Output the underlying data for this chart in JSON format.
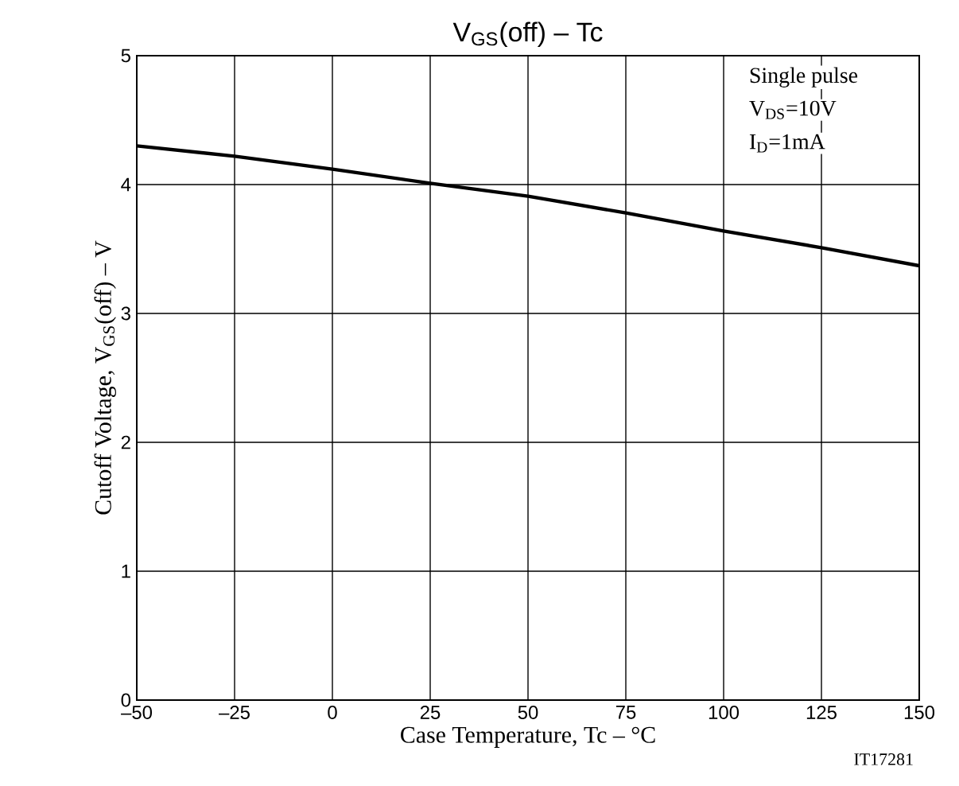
{
  "chart_data": {
    "type": "line",
    "title": "V$_{GS}$(off)  –  Tc",
    "xlabel": "Case Temperature, Tc  –  °C",
    "ylabel": "Cutoff Voltage, V$_{GS}$(off)  –  V",
    "x": [
      -50,
      -25,
      0,
      25,
      50,
      75,
      100,
      125,
      150
    ],
    "series": [
      {
        "color": "#000000",
        "values": [
          4.3,
          4.22,
          4.12,
          4.01,
          3.91,
          3.78,
          3.64,
          3.51,
          3.37
        ]
      }
    ],
    "xlim": [
      -50,
      150
    ],
    "ylim": [
      0,
      5
    ],
    "xticks": [
      {
        "value": -50,
        "label": "–50"
      },
      {
        "value": -25,
        "label": "–25"
      },
      0,
      25,
      50,
      75,
      100,
      125,
      150
    ],
    "yticks": [
      0,
      1,
      2,
      3,
      4,
      5
    ],
    "grid": true,
    "marker": "none",
    "line_style": "solid",
    "annotations": [
      "Single pulse",
      "V$_{DS}$=10V",
      "I$_{D}$=1mA",
      "IT17281"
    ]
  }
}
